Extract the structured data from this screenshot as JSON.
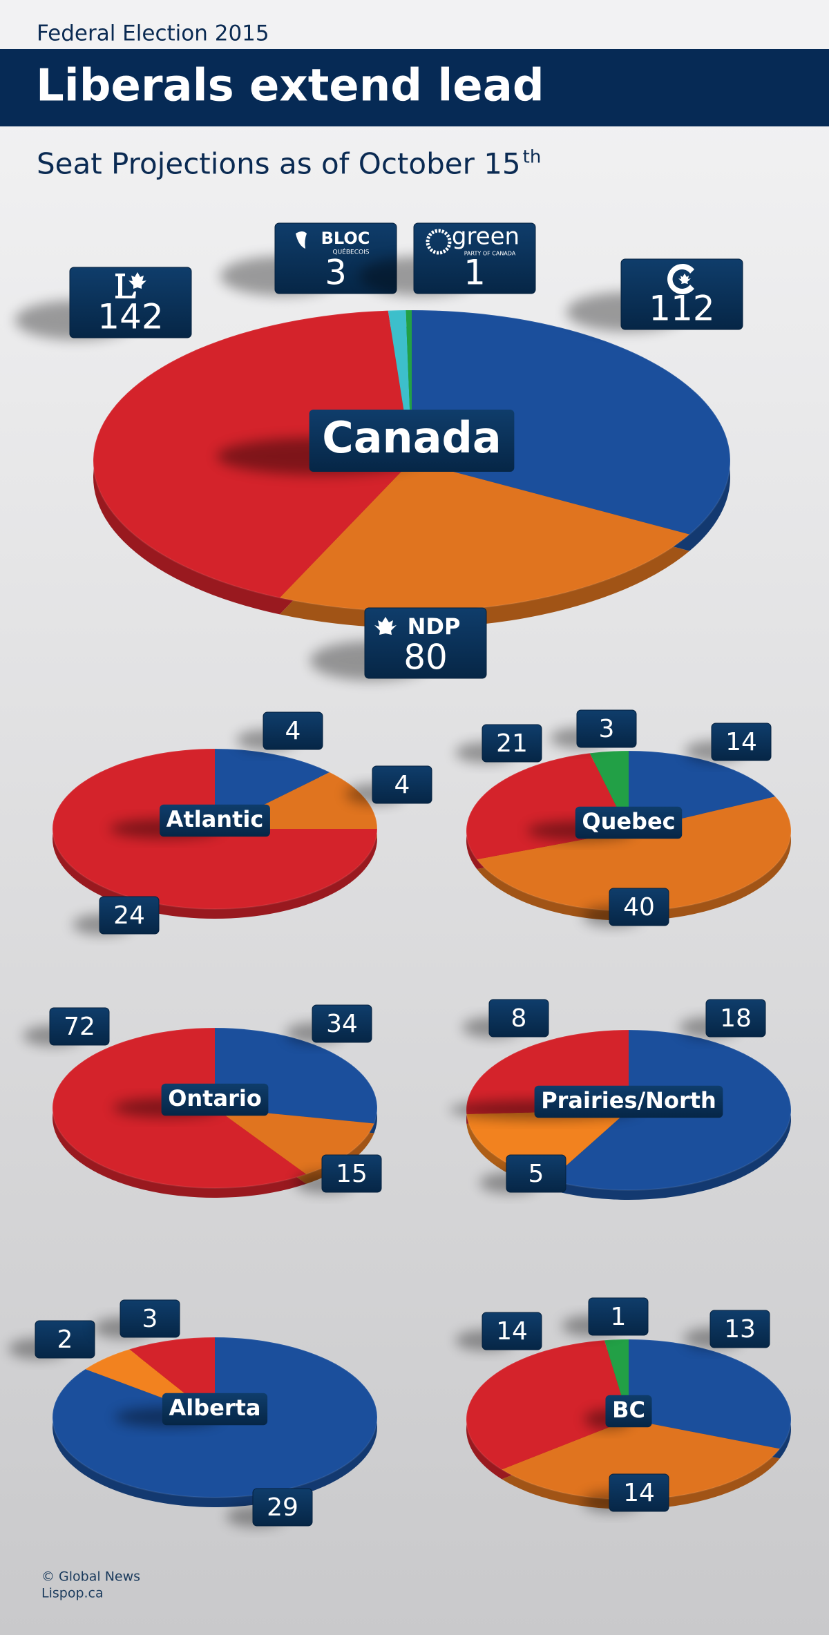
{
  "header": {
    "kicker": "Federal Election 2015",
    "title": "Liberals extend lead",
    "subtitle": "Seat Projections as of October 15",
    "subtitle_sup": "th"
  },
  "logos": {
    "bloc": [
      "BLOC",
      "QUÉBECOIS"
    ],
    "green": [
      "green",
      "PARTY OF CANADA"
    ],
    "ndp": "NDP"
  },
  "chart_data": [
    {
      "type": "pie",
      "title": "Canada",
      "values": [
        112,
        80,
        142,
        3,
        1
      ],
      "colors": [
        "#1b4f9c",
        "#e0741f",
        "#d4232b",
        "#3dbfcb",
        "#22a046"
      ]
    },
    {
      "type": "pie",
      "title": "Atlantic",
      "values": [
        4,
        4,
        24
      ],
      "colors": [
        "#1b4f9c",
        "#e0741f",
        "#d4232b"
      ]
    },
    {
      "type": "pie",
      "title": "Quebec",
      "values": [
        14,
        40,
        21,
        3
      ],
      "colors": [
        "#1b4f9c",
        "#e0741f",
        "#d4232b",
        "#22a046"
      ]
    },
    {
      "type": "pie",
      "title": "Ontario",
      "values": [
        34,
        15,
        72
      ],
      "colors": [
        "#1b4f9c",
        "#e0741f",
        "#d4232b"
      ]
    },
    {
      "type": "pie",
      "title": "Prairies/North",
      "values": [
        18,
        5,
        8
      ],
      "colors": [
        "#1b4f9c",
        "#f2821f",
        "#d4232b"
      ]
    },
    {
      "type": "pie",
      "title": "Alberta",
      "values": [
        29,
        2,
        3
      ],
      "colors": [
        "#1b4f9c",
        "#f2821f",
        "#d4232b"
      ]
    },
    {
      "type": "pie",
      "title": "BC",
      "values": [
        13,
        14,
        14,
        1
      ],
      "colors": [
        "#1b4f9c",
        "#e0741f",
        "#d4232b",
        "#22a046"
      ]
    }
  ],
  "footer": [
    "© Global News",
    "Lispop.ca"
  ]
}
